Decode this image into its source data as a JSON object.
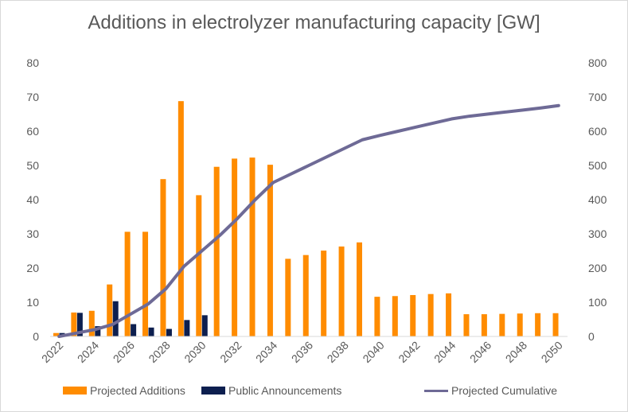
{
  "chart_data": {
    "type": "bar",
    "title": "Additions in electrolyzer manufacturing capacity [GW]",
    "xlabel": "",
    "ylabel": "",
    "ylim": [
      0,
      80
    ],
    "y2lim": [
      0,
      800
    ],
    "yticks": [
      "0",
      "10",
      "20",
      "30",
      "40",
      "50",
      "60",
      "70",
      "80"
    ],
    "y2ticks": [
      "0",
      "100",
      "200",
      "300",
      "400",
      "500",
      "600",
      "700",
      "800"
    ],
    "categories": [
      "2022",
      "2023",
      "2024",
      "2025",
      "2026",
      "2027",
      "2028",
      "2029",
      "2030",
      "2031",
      "2032",
      "2033",
      "2034",
      "2035",
      "2036",
      "2037",
      "2038",
      "2039",
      "2040",
      "2041",
      "2042",
      "2043",
      "2044",
      "2045",
      "2046",
      "2047",
      "2048",
      "2049",
      "2050"
    ],
    "xtick_labels": [
      "2022",
      "2024",
      "2026",
      "2028",
      "2030",
      "2032",
      "2034",
      "2036",
      "2038",
      "2040",
      "2042",
      "2044",
      "2046",
      "2048",
      "2050"
    ],
    "grid": false,
    "legend_position": "bottom",
    "series": [
      {
        "name": "Projected Additions",
        "type": "bar",
        "axis": "left",
        "color": "#FF8C00",
        "values": [
          1,
          7,
          7.5,
          15.2,
          30.6,
          30.6,
          46,
          68.8,
          41.3,
          49.6,
          52,
          52.3,
          50.2,
          22.7,
          23.8,
          25.1,
          26.3,
          27.5,
          11.6,
          11.8,
          12.1,
          12.4,
          12.6,
          6.5,
          6.5,
          6.6,
          6.7,
          6.8,
          6.8
        ]
      },
      {
        "name": "Public Announcements",
        "type": "bar",
        "axis": "left",
        "color": "#0D1F4F",
        "values": [
          1,
          6.9,
          3,
          10.3,
          3.6,
          2.6,
          2.2,
          4.8,
          6.2,
          null,
          null,
          null,
          null,
          null,
          null,
          null,
          null,
          null,
          null,
          null,
          null,
          null,
          null,
          null,
          null,
          null,
          null,
          null,
          null
        ]
      },
      {
        "name": "Projected Cumulative",
        "type": "line",
        "axis": "right",
        "color": "#6E6A96",
        "values": [
          0,
          10,
          20,
          35,
          65,
          95,
          140,
          205,
          250,
          295,
          345,
          400,
          450,
          475,
          500,
          525,
          550,
          575,
          588,
          600,
          612,
          624,
          636,
          644,
          650,
          656,
          662,
          668,
          675
        ]
      }
    ]
  }
}
